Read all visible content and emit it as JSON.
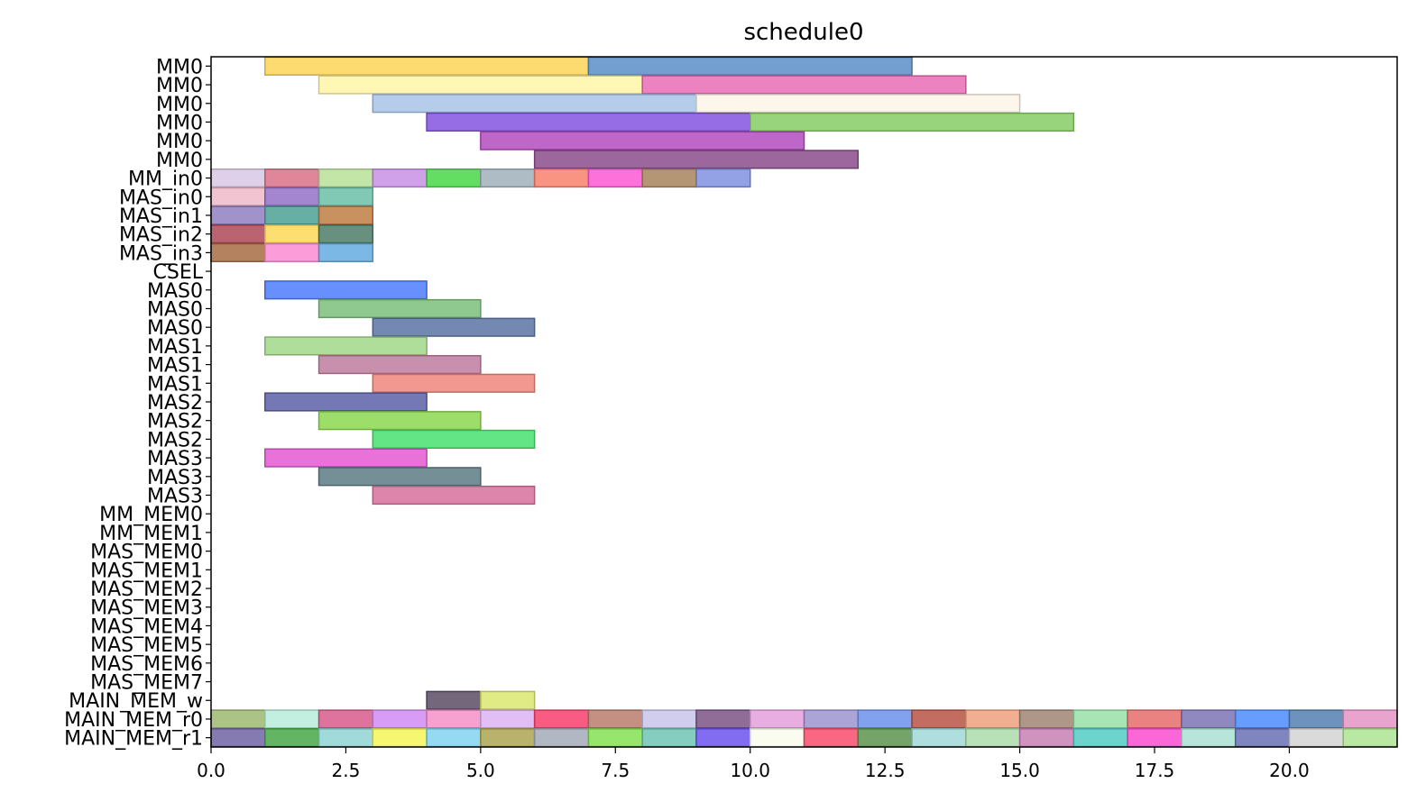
{
  "chart_data": {
    "type": "bar",
    "orientation": "horizontal",
    "title": "schedule0",
    "xlabel": "",
    "ylabel": "",
    "xlim": [
      0,
      22
    ],
    "xticks": [
      0,
      2.5,
      5,
      7.5,
      10,
      12.5,
      15,
      17.5,
      20
    ],
    "xtick_labels": [
      "0.0",
      "2.5",
      "5.0",
      "7.5",
      "10.0",
      "12.5",
      "15.0",
      "17.5",
      "20.0"
    ],
    "grid": false,
    "legend": "none",
    "rows": [
      "MM0",
      "MM0",
      "MM0",
      "MM0",
      "MM0",
      "MM0",
      "MM_in0",
      "MAS_in0",
      "MAS_in1",
      "MAS_in2",
      "MAS_in3",
      "CSEL",
      "MAS0",
      "MAS0",
      "MAS0",
      "MAS1",
      "MAS1",
      "MAS1",
      "MAS2",
      "MAS2",
      "MAS2",
      "MAS3",
      "MAS3",
      "MAS3",
      "MM_MEM0",
      "MM_MEM1",
      "MAS_MEM0",
      "MAS_MEM1",
      "MAS_MEM2",
      "MAS_MEM3",
      "MAS_MEM4",
      "MAS_MEM5",
      "MAS_MEM6",
      "MAS_MEM7",
      "MAIN_MEM_w",
      "MAIN_MEM_r0",
      "MAIN_MEM_r1"
    ],
    "bars": [
      {
        "row": 0,
        "start": 1,
        "end": 7,
        "color": "#fdd558"
      },
      {
        "row": 0,
        "start": 7,
        "end": 13,
        "color": "#5b8ec8"
      },
      {
        "row": 1,
        "start": 2,
        "end": 8,
        "color": "#fff6a6"
      },
      {
        "row": 1,
        "start": 8,
        "end": 14,
        "color": "#e96cb5"
      },
      {
        "row": 2,
        "start": 3,
        "end": 9,
        "color": "#a8c4e8"
      },
      {
        "row": 2,
        "start": 9,
        "end": 15,
        "color": "#fcf4e8"
      },
      {
        "row": 3,
        "start": 4,
        "end": 10,
        "color": "#8554e0"
      },
      {
        "row": 3,
        "start": 10,
        "end": 16,
        "color": "#86cc64"
      },
      {
        "row": 4,
        "start": 5,
        "end": 11,
        "color": "#b44cc0"
      },
      {
        "row": 5,
        "start": 6,
        "end": 12,
        "color": "#8a4c8c"
      },
      {
        "row": 6,
        "start": 0,
        "end": 1,
        "color": "#d8c8e4"
      },
      {
        "row": 6,
        "start": 1,
        "end": 2,
        "color": "#dc7088"
      },
      {
        "row": 6,
        "start": 2,
        "end": 3,
        "color": "#b8e098"
      },
      {
        "row": 6,
        "start": 3,
        "end": 4,
        "color": "#c890e4"
      },
      {
        "row": 6,
        "start": 4,
        "end": 5,
        "color": "#48d848"
      },
      {
        "row": 6,
        "start": 5,
        "end": 6,
        "color": "#a0b0bc"
      },
      {
        "row": 6,
        "start": 6,
        "end": 7,
        "color": "#f8806c"
      },
      {
        "row": 6,
        "start": 7,
        "end": 8,
        "color": "#fc58d4"
      },
      {
        "row": 6,
        "start": 8,
        "end": 9,
        "color": "#a8845c"
      },
      {
        "row": 6,
        "start": 9,
        "end": 10,
        "color": "#8090e0"
      },
      {
        "row": 7,
        "start": 0,
        "end": 1,
        "color": "#f0b8c8"
      },
      {
        "row": 7,
        "start": 1,
        "end": 2,
        "color": "#9470c8"
      },
      {
        "row": 7,
        "start": 2,
        "end": 3,
        "color": "#6cc0a8"
      },
      {
        "row": 8,
        "start": 0,
        "end": 1,
        "color": "#9080c0"
      },
      {
        "row": 8,
        "start": 1,
        "end": 2,
        "color": "#4ca094"
      },
      {
        "row": 8,
        "start": 2,
        "end": 3,
        "color": "#c07c44"
      },
      {
        "row": 9,
        "start": 0,
        "end": 1,
        "color": "#b04858"
      },
      {
        "row": 9,
        "start": 1,
        "end": 2,
        "color": "#fcd858"
      },
      {
        "row": 9,
        "start": 2,
        "end": 3,
        "color": "#4c7c68"
      },
      {
        "row": 10,
        "start": 0,
        "end": 1,
        "color": "#a86c44"
      },
      {
        "row": 10,
        "start": 1,
        "end": 2,
        "color": "#fc8cd4"
      },
      {
        "row": 10,
        "start": 2,
        "end": 3,
        "color": "#64ace0"
      },
      {
        "row": 12,
        "start": 1,
        "end": 4,
        "color": "#4c7cfc"
      },
      {
        "row": 13,
        "start": 2,
        "end": 5,
        "color": "#7cc07c"
      },
      {
        "row": 14,
        "start": 3,
        "end": 6,
        "color": "#5c74a4"
      },
      {
        "row": 15,
        "start": 1,
        "end": 4,
        "color": "#a0d888"
      },
      {
        "row": 16,
        "start": 2,
        "end": 5,
        "color": "#c07ca0"
      },
      {
        "row": 17,
        "start": 3,
        "end": 6,
        "color": "#f0867c"
      },
      {
        "row": 18,
        "start": 1,
        "end": 4,
        "color": "#5c60a8"
      },
      {
        "row": 19,
        "start": 2,
        "end": 5,
        "color": "#8cd850"
      },
      {
        "row": 20,
        "start": 3,
        "end": 6,
        "color": "#48e070"
      },
      {
        "row": 21,
        "start": 1,
        "end": 4,
        "color": "#e458d4"
      },
      {
        "row": 22,
        "start": 2,
        "end": 5,
        "color": "#5c7c84"
      },
      {
        "row": 23,
        "start": 3,
        "end": 6,
        "color": "#d8709c"
      },
      {
        "row": 34,
        "start": 4,
        "end": 5,
        "color": "#5c4c64"
      },
      {
        "row": 34,
        "start": 5,
        "end": 6,
        "color": "#dce870"
      },
      {
        "row": 35,
        "start": 0,
        "end": 1,
        "color": "#9cb870"
      },
      {
        "row": 35,
        "start": 1,
        "end": 2,
        "color": "#b8ecdc"
      },
      {
        "row": 35,
        "start": 2,
        "end": 3,
        "color": "#d85c8c"
      },
      {
        "row": 35,
        "start": 3,
        "end": 4,
        "color": "#d08cf4"
      },
      {
        "row": 35,
        "start": 4,
        "end": 5,
        "color": "#f490c8"
      },
      {
        "row": 35,
        "start": 5,
        "end": 6,
        "color": "#dcb4f4"
      },
      {
        "row": 35,
        "start": 6,
        "end": 7,
        "color": "#f8406c"
      },
      {
        "row": 35,
        "start": 7,
        "end": 8,
        "color": "#b87c6c"
      },
      {
        "row": 35,
        "start": 8,
        "end": 9,
        "color": "#c8c4ec"
      },
      {
        "row": 35,
        "start": 9,
        "end": 10,
        "color": "#7c5484"
      },
      {
        "row": 35,
        "start": 10,
        "end": 11,
        "color": "#e4a0dc"
      },
      {
        "row": 35,
        "start": 11,
        "end": 12,
        "color": "#9c94d0"
      },
      {
        "row": 35,
        "start": 12,
        "end": 13,
        "color": "#6c90ec"
      },
      {
        "row": 35,
        "start": 13,
        "end": 14,
        "color": "#b85444"
      },
      {
        "row": 35,
        "start": 14,
        "end": 15,
        "color": "#f0a07c"
      },
      {
        "row": 35,
        "start": 15,
        "end": 16,
        "color": "#a08474"
      },
      {
        "row": 35,
        "start": 16,
        "end": 17,
        "color": "#98e0a8"
      },
      {
        "row": 35,
        "start": 17,
        "end": 18,
        "color": "#e86c6c"
      },
      {
        "row": 35,
        "start": 18,
        "end": 19,
        "color": "#7c74b4"
      },
      {
        "row": 35,
        "start": 19,
        "end": 20,
        "color": "#4c8cfc"
      },
      {
        "row": 35,
        "start": 20,
        "end": 21,
        "color": "#5480b0"
      },
      {
        "row": 35,
        "start": 21,
        "end": 22,
        "color": "#e494c4"
      },
      {
        "row": 36,
        "start": 0,
        "end": 1,
        "color": "#7064a4"
      },
      {
        "row": 36,
        "start": 1,
        "end": 2,
        "color": "#48a848"
      },
      {
        "row": 36,
        "start": 2,
        "end": 3,
        "color": "#90d4d4"
      },
      {
        "row": 36,
        "start": 3,
        "end": 4,
        "color": "#f4f458"
      },
      {
        "row": 36,
        "start": 4,
        "end": 5,
        "color": "#80d4f0"
      },
      {
        "row": 36,
        "start": 5,
        "end": 6,
        "color": "#aca450"
      },
      {
        "row": 36,
        "start": 6,
        "end": 7,
        "color": "#a4acb8"
      },
      {
        "row": 36,
        "start": 7,
        "end": 8,
        "color": "#84e054"
      },
      {
        "row": 36,
        "start": 8,
        "end": 9,
        "color": "#70c4b4"
      },
      {
        "row": 36,
        "start": 9,
        "end": 10,
        "color": "#6c54f0"
      },
      {
        "row": 36,
        "start": 10,
        "end": 11,
        "color": "#f8fcec"
      },
      {
        "row": 36,
        "start": 11,
        "end": 12,
        "color": "#f84c6c"
      },
      {
        "row": 36,
        "start": 12,
        "end": 13,
        "color": "#5c944c"
      },
      {
        "row": 36,
        "start": 13,
        "end": 14,
        "color": "#a0d8d8"
      },
      {
        "row": 36,
        "start": 14,
        "end": 15,
        "color": "#acdcac"
      },
      {
        "row": 36,
        "start": 15,
        "end": 16,
        "color": "#c880b4"
      },
      {
        "row": 36,
        "start": 16,
        "end": 17,
        "color": "#54ccc4"
      },
      {
        "row": 36,
        "start": 17,
        "end": 18,
        "color": "#fc4cd0"
      },
      {
        "row": 36,
        "start": 18,
        "end": 19,
        "color": "#ace0d4"
      },
      {
        "row": 36,
        "start": 19,
        "end": 20,
        "color": "#6870b4"
      },
      {
        "row": 36,
        "start": 20,
        "end": 21,
        "color": "#d4d4d4"
      },
      {
        "row": 36,
        "start": 21,
        "end": 22,
        "color": "#ace490"
      }
    ]
  }
}
